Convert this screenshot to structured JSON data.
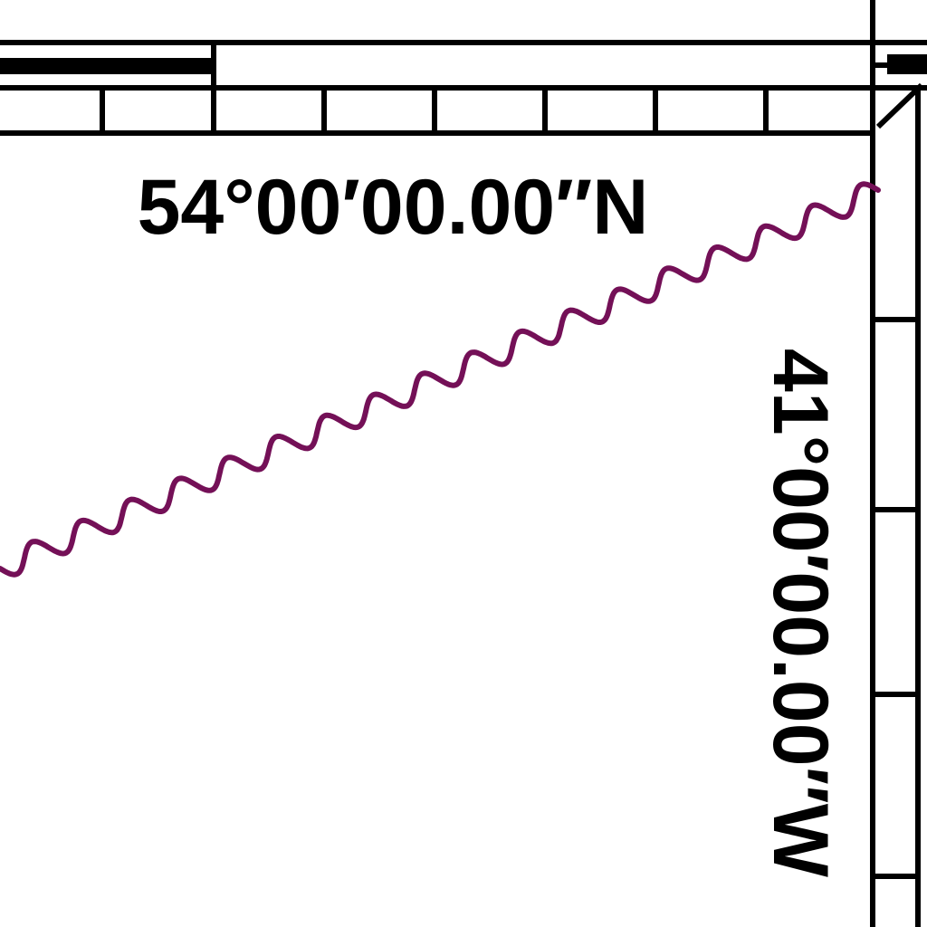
{
  "map": {
    "top_coordinate_label": "54°00′00.00″N",
    "right_coordinate_label": "41°00′00.00″W",
    "boundary_line_color": "#741057",
    "frame_color": "#000000",
    "background_color": "#ffffff"
  }
}
